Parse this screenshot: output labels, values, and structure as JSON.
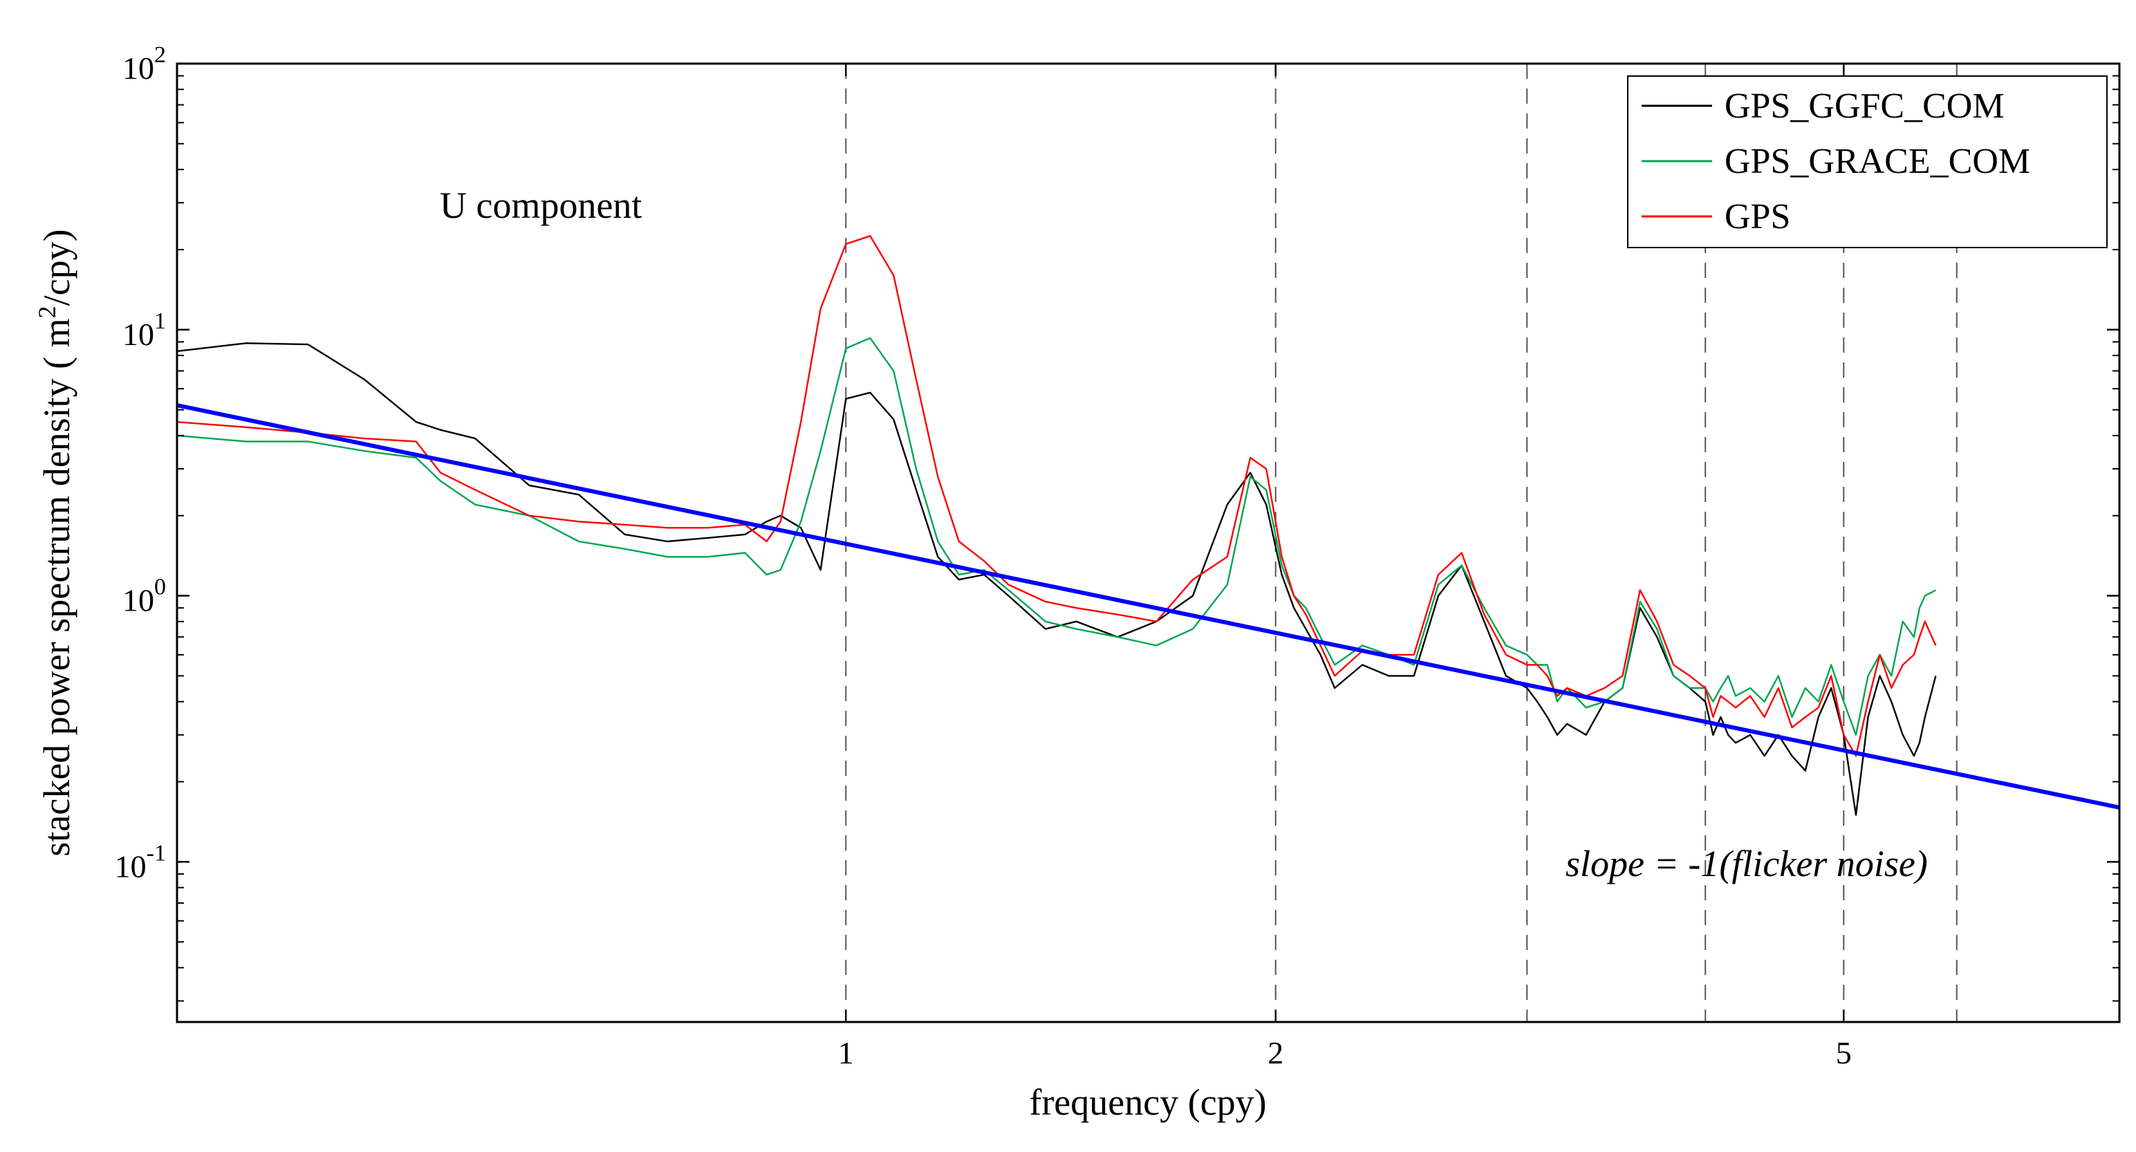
{
  "chart_data": {
    "type": "line",
    "x_scale": "log",
    "y_scale": "log",
    "xlim": [
      0.34,
      7.8
    ],
    "ylim": [
      0.025,
      100
    ],
    "xlabel": "frequency (cpy)",
    "ylabel": {
      "main": "stacked power spectrum density ( m",
      "sup": "2",
      "tail": "/cpy)"
    },
    "x_ticks": [
      {
        "value": 1,
        "label": "1"
      },
      {
        "value": 2,
        "label": "2"
      },
      {
        "value": 5,
        "label": "5"
      }
    ],
    "y_ticks": [
      {
        "value": 0.1,
        "base": "10",
        "exp": "-1"
      },
      {
        "value": 1,
        "base": "10",
        "exp": "0"
      },
      {
        "value": 10,
        "base": "10",
        "exp": "1"
      },
      {
        "value": 100,
        "base": "10",
        "exp": "2"
      }
    ],
    "harmonic_lines": [
      1,
      2,
      3,
      4,
      5,
      6
    ],
    "annotations": {
      "component": "U component",
      "slope": "slope = -1(flicker noise)"
    },
    "legend": {
      "position": "top-right"
    },
    "series": [
      {
        "name": "GPS_GGFC_COM",
        "color": "#000000",
        "x": [
          0.34,
          0.38,
          0.42,
          0.46,
          0.5,
          0.52,
          0.55,
          0.6,
          0.65,
          0.7,
          0.75,
          0.8,
          0.85,
          0.88,
          0.9,
          0.93,
          0.96,
          1.0,
          1.04,
          1.08,
          1.12,
          1.16,
          1.2,
          1.25,
          1.3,
          1.38,
          1.45,
          1.55,
          1.65,
          1.75,
          1.85,
          1.92,
          1.97,
          2.02,
          2.06,
          2.1,
          2.15,
          2.2,
          2.3,
          2.4,
          2.5,
          2.6,
          2.7,
          2.8,
          2.9,
          3.0,
          3.05,
          3.1,
          3.15,
          3.2,
          3.3,
          3.4,
          3.5,
          3.6,
          3.7,
          3.8,
          3.9,
          4.0,
          4.05,
          4.1,
          4.15,
          4.2,
          4.3,
          4.4,
          4.5,
          4.6,
          4.7,
          4.8,
          4.9,
          5.0,
          5.1,
          5.2,
          5.3,
          5.4,
          5.5,
          5.6,
          5.65,
          5.7,
          5.8
        ],
        "y": [
          8.3,
          8.9,
          8.8,
          6.5,
          4.5,
          4.2,
          3.9,
          2.6,
          2.4,
          1.7,
          1.6,
          1.65,
          1.7,
          1.9,
          2.0,
          1.8,
          1.25,
          5.5,
          5.8,
          4.6,
          2.5,
          1.4,
          1.15,
          1.2,
          1.0,
          0.75,
          0.8,
          0.7,
          0.8,
          1.0,
          2.2,
          2.9,
          2.2,
          1.2,
          0.9,
          0.75,
          0.6,
          0.45,
          0.55,
          0.5,
          0.5,
          1.0,
          1.3,
          0.8,
          0.5,
          0.45,
          0.4,
          0.35,
          0.3,
          0.33,
          0.3,
          0.4,
          0.45,
          0.9,
          0.7,
          0.5,
          0.45,
          0.4,
          0.3,
          0.35,
          0.3,
          0.28,
          0.3,
          0.25,
          0.3,
          0.25,
          0.22,
          0.35,
          0.45,
          0.3,
          0.15,
          0.35,
          0.5,
          0.4,
          0.3,
          0.25,
          0.28,
          0.35,
          0.5
        ]
      },
      {
        "name": "GPS_GRACE_COM",
        "color": "#00A651",
        "x": [
          0.34,
          0.38,
          0.42,
          0.46,
          0.5,
          0.52,
          0.55,
          0.6,
          0.65,
          0.7,
          0.75,
          0.8,
          0.85,
          0.88,
          0.9,
          0.93,
          0.96,
          1.0,
          1.04,
          1.08,
          1.12,
          1.16,
          1.2,
          1.25,
          1.3,
          1.38,
          1.45,
          1.55,
          1.65,
          1.75,
          1.85,
          1.92,
          1.97,
          2.02,
          2.06,
          2.1,
          2.15,
          2.2,
          2.3,
          2.4,
          2.5,
          2.6,
          2.7,
          2.8,
          2.9,
          3.0,
          3.05,
          3.1,
          3.15,
          3.2,
          3.3,
          3.4,
          3.5,
          3.6,
          3.7,
          3.8,
          3.9,
          4.0,
          4.05,
          4.1,
          4.15,
          4.2,
          4.3,
          4.4,
          4.5,
          4.6,
          4.7,
          4.8,
          4.9,
          5.0,
          5.1,
          5.2,
          5.3,
          5.4,
          5.5,
          5.6,
          5.65,
          5.7,
          5.8
        ],
        "y": [
          4.0,
          3.8,
          3.8,
          3.5,
          3.3,
          2.7,
          2.2,
          2.0,
          1.6,
          1.5,
          1.4,
          1.4,
          1.45,
          1.2,
          1.25,
          1.9,
          3.5,
          8.5,
          9.3,
          7.0,
          3.0,
          1.6,
          1.2,
          1.25,
          1.05,
          0.8,
          0.75,
          0.7,
          0.65,
          0.75,
          1.1,
          2.8,
          2.5,
          1.3,
          1.0,
          0.9,
          0.7,
          0.55,
          0.65,
          0.6,
          0.55,
          1.1,
          1.3,
          0.9,
          0.65,
          0.6,
          0.55,
          0.55,
          0.4,
          0.45,
          0.38,
          0.4,
          0.45,
          0.95,
          0.75,
          0.5,
          0.45,
          0.45,
          0.4,
          0.45,
          0.5,
          0.42,
          0.45,
          0.4,
          0.5,
          0.35,
          0.45,
          0.4,
          0.55,
          0.4,
          0.3,
          0.5,
          0.6,
          0.5,
          0.8,
          0.7,
          0.9,
          1.0,
          1.05
        ]
      },
      {
        "name": "GPS",
        "color": "#FF0000",
        "x": [
          0.34,
          0.38,
          0.42,
          0.46,
          0.5,
          0.52,
          0.55,
          0.6,
          0.65,
          0.7,
          0.75,
          0.8,
          0.85,
          0.88,
          0.9,
          0.93,
          0.96,
          1.0,
          1.04,
          1.08,
          1.12,
          1.16,
          1.2,
          1.25,
          1.3,
          1.38,
          1.45,
          1.55,
          1.65,
          1.75,
          1.85,
          1.92,
          1.97,
          2.02,
          2.06,
          2.1,
          2.15,
          2.2,
          2.3,
          2.4,
          2.5,
          2.6,
          2.7,
          2.8,
          2.9,
          3.0,
          3.05,
          3.1,
          3.15,
          3.2,
          3.3,
          3.4,
          3.5,
          3.6,
          3.7,
          3.8,
          3.9,
          4.0,
          4.05,
          4.1,
          4.15,
          4.2,
          4.3,
          4.4,
          4.5,
          4.6,
          4.7,
          4.8,
          4.9,
          5.0,
          5.1,
          5.2,
          5.3,
          5.4,
          5.5,
          5.6,
          5.65,
          5.7,
          5.8
        ],
        "y": [
          4.5,
          4.3,
          4.1,
          3.9,
          3.8,
          2.9,
          2.5,
          2.0,
          1.9,
          1.85,
          1.8,
          1.8,
          1.85,
          1.6,
          1.9,
          4.5,
          12.0,
          21.0,
          22.5,
          16.0,
          6.5,
          2.8,
          1.6,
          1.35,
          1.1,
          0.95,
          0.9,
          0.85,
          0.8,
          1.15,
          1.4,
          3.3,
          3.0,
          1.4,
          1.0,
          0.85,
          0.65,
          0.5,
          0.62,
          0.6,
          0.6,
          1.2,
          1.45,
          0.85,
          0.6,
          0.55,
          0.55,
          0.5,
          0.42,
          0.45,
          0.42,
          0.45,
          0.5,
          1.05,
          0.8,
          0.55,
          0.5,
          0.45,
          0.35,
          0.42,
          0.4,
          0.38,
          0.42,
          0.35,
          0.45,
          0.32,
          0.35,
          0.38,
          0.5,
          0.3,
          0.25,
          0.4,
          0.6,
          0.45,
          0.55,
          0.6,
          0.7,
          0.8,
          0.65
        ]
      },
      {
        "name": "flicker noise fit (slope -1)",
        "color": "#0000FF",
        "line_type": "fit",
        "x": [
          0.34,
          7.8
        ],
        "y": [
          5.2,
          0.16
        ]
      }
    ]
  }
}
